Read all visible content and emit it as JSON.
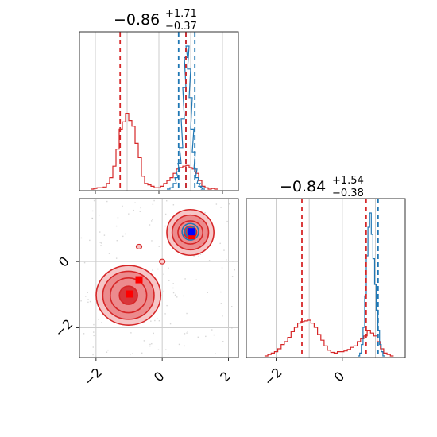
{
  "colors": {
    "red": "#d62728",
    "blue": "#1f77b4",
    "grid": "#cccccc",
    "fill_red_outer": "#f6c6c7",
    "fill_red_mid": "#ec8b8d",
    "fill_red_inner": "#d9363a",
    "fill_blue": "#2b62d6"
  },
  "chart_data": [
    {
      "type": "histogram",
      "panel": "marginal-x",
      "title_main": "−0.86",
      "title_sup": "+1.71",
      "title_sub": "−0.37",
      "xlim": [
        -2.5,
        2.5
      ],
      "grid": true,
      "vlines": {
        "red": [
          -1.22,
          0.85
        ],
        "blue": [
          0.62,
          0.85,
          1.13
        ]
      },
      "series": [
        {
          "color": "red",
          "bins": [
            [
              -2.1,
              0.0
            ],
            [
              -2.0,
              0.005
            ],
            [
              -1.9,
              0.01
            ],
            [
              -1.8,
              0.01
            ],
            [
              -1.7,
              0.015
            ],
            [
              -1.6,
              0.04
            ],
            [
              -1.5,
              0.08
            ],
            [
              -1.4,
              0.16
            ],
            [
              -1.3,
              0.28
            ],
            [
              -1.2,
              0.42
            ],
            [
              -1.1,
              0.47
            ],
            [
              -1.0,
              0.53
            ],
            [
              -0.9,
              0.48
            ],
            [
              -0.8,
              0.44
            ],
            [
              -0.7,
              0.32
            ],
            [
              -0.6,
              0.22
            ],
            [
              -0.5,
              0.09
            ],
            [
              -0.4,
              0.04
            ],
            [
              -0.3,
              0.03
            ],
            [
              -0.2,
              0.02
            ],
            [
              -0.1,
              0.01
            ],
            [
              0.0,
              0.01
            ],
            [
              0.1,
              0.02
            ],
            [
              0.2,
              0.04
            ],
            [
              0.3,
              0.06
            ],
            [
              0.4,
              0.08
            ],
            [
              0.5,
              0.11
            ],
            [
              0.6,
              0.14
            ],
            [
              0.7,
              0.15
            ],
            [
              0.8,
              0.16
            ],
            [
              0.9,
              0.165
            ],
            [
              1.0,
              0.15
            ],
            [
              1.1,
              0.14
            ],
            [
              1.2,
              0.11
            ],
            [
              1.3,
              0.06
            ],
            [
              1.4,
              0.02
            ],
            [
              1.5,
              0.01
            ],
            [
              1.6,
              0.0
            ],
            [
              1.7,
              0.005
            ],
            [
              1.8,
              0.0
            ]
          ]
        },
        {
          "color": "blue",
          "bins": [
            [
              0.3,
              0.0
            ],
            [
              0.4,
              0.01
            ],
            [
              0.5,
              0.04
            ],
            [
              0.55,
              0.08
            ],
            [
              0.6,
              0.12
            ],
            [
              0.65,
              0.18
            ],
            [
              0.7,
              0.29
            ],
            [
              0.75,
              0.49
            ],
            [
              0.8,
              0.71
            ],
            [
              0.85,
              0.92
            ],
            [
              0.9,
              1.0
            ],
            [
              0.95,
              0.84
            ],
            [
              1.0,
              0.64
            ],
            [
              1.05,
              0.42
            ],
            [
              1.1,
              0.26
            ],
            [
              1.15,
              0.14
            ],
            [
              1.2,
              0.08
            ],
            [
              1.25,
              0.04
            ],
            [
              1.3,
              0.02
            ],
            [
              1.35,
              0.01
            ],
            [
              1.4,
              0.0
            ]
          ]
        }
      ]
    },
    {
      "type": "contour",
      "panel": "joint",
      "xlim": [
        -2.5,
        2.3
      ],
      "ylim": [
        -2.9,
        1.9
      ],
      "grid": true,
      "xticks": [
        -2,
        0,
        2
      ],
      "xtick_labels": [
        "−2",
        "0",
        "2"
      ],
      "yticks": [
        -2,
        0
      ],
      "ytick_labels": [
        "−2",
        "0"
      ],
      "red_modes": [
        {
          "cx": -1.02,
          "cy": -1.02,
          "rx": [
            1.95,
            1.55,
            1.1,
            0.55
          ],
          "ry": [
            1.8,
            1.45,
            1.05,
            0.55
          ]
        },
        {
          "cx": 0.85,
          "cy": 0.88,
          "rx": [
            1.42,
            1.1,
            0.75,
            0.38
          ],
          "ry": [
            1.38,
            1.05,
            0.7,
            0.38
          ]
        }
      ],
      "blue_mode": {
        "cx": 0.85,
        "cy": 0.9,
        "rx": [
          0.5,
          0.32,
          0.18
        ],
        "ry": [
          0.5,
          0.32,
          0.18
        ]
      },
      "markers_red": [
        [
          -0.7,
          -0.55
        ],
        [
          -1.0,
          -0.98
        ],
        [
          0.9,
          0.78
        ]
      ],
      "markers_blue": [
        [
          0.88,
          0.9
        ]
      ],
      "small_blobs": [
        [
          -0.7,
          0.45
        ],
        [
          0.0,
          0.0
        ]
      ]
    },
    {
      "type": "histogram",
      "panel": "marginal-y",
      "title_main": "−0.84",
      "title_sup": "+1.54",
      "title_sub": "−0.38",
      "xlim": [
        -2.9,
        1.9
      ],
      "grid": true,
      "xticks": [
        -2,
        0
      ],
      "xtick_labels": [
        "−2",
        "0"
      ],
      "vlines": {
        "red": [
          -1.22,
          0.72
        ],
        "blue": [
          0.7,
          1.08
        ]
      },
      "series": [
        {
          "color": "red",
          "bins": [
            [
              -2.3,
              0.0
            ],
            [
              -2.2,
              0.01
            ],
            [
              -2.1,
              0.02
            ],
            [
              -2.0,
              0.03
            ],
            [
              -1.9,
              0.05
            ],
            [
              -1.8,
              0.08
            ],
            [
              -1.7,
              0.1
            ],
            [
              -1.6,
              0.13
            ],
            [
              -1.5,
              0.17
            ],
            [
              -1.4,
              0.2
            ],
            [
              -1.3,
              0.23
            ],
            [
              -1.2,
              0.24
            ],
            [
              -1.1,
              0.245
            ],
            [
              -1.0,
              0.25
            ],
            [
              -0.9,
              0.23
            ],
            [
              -0.8,
              0.2
            ],
            [
              -0.7,
              0.15
            ],
            [
              -0.6,
              0.11
            ],
            [
              -0.5,
              0.07
            ],
            [
              -0.4,
              0.04
            ],
            [
              -0.3,
              0.025
            ],
            [
              -0.2,
              0.02
            ],
            [
              -0.1,
              0.03
            ],
            [
              0.0,
              0.03
            ],
            [
              0.1,
              0.035
            ],
            [
              0.2,
              0.045
            ],
            [
              0.3,
              0.06
            ],
            [
              0.4,
              0.07
            ],
            [
              0.5,
              0.1
            ],
            [
              0.6,
              0.12
            ],
            [
              0.7,
              0.14
            ],
            [
              0.8,
              0.18
            ],
            [
              0.9,
              0.16
            ],
            [
              1.0,
              0.14
            ],
            [
              1.1,
              0.1
            ],
            [
              1.2,
              0.05
            ],
            [
              1.3,
              0.02
            ],
            [
              1.4,
              0.01
            ],
            [
              1.5,
              0.0
            ]
          ]
        },
        {
          "color": "blue",
          "bins": [
            [
              0.5,
              0.0
            ],
            [
              0.55,
              0.02
            ],
            [
              0.6,
              0.08
            ],
            [
              0.65,
              0.2
            ],
            [
              0.7,
              0.42
            ],
            [
              0.75,
              0.7
            ],
            [
              0.8,
              0.9
            ],
            [
              0.85,
              1.0
            ],
            [
              0.9,
              0.85
            ],
            [
              0.95,
              0.68
            ],
            [
              1.0,
              0.5
            ],
            [
              1.05,
              0.32
            ],
            [
              1.1,
              0.18
            ],
            [
              1.15,
              0.08
            ],
            [
              1.2,
              0.03
            ],
            [
              1.25,
              0.0
            ]
          ]
        }
      ]
    }
  ]
}
